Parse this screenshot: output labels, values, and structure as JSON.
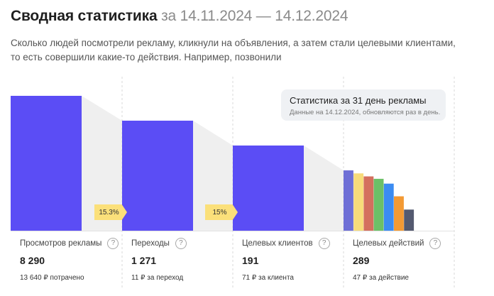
{
  "header": {
    "title": "Сводная статистика",
    "period": "за 14.11.2024 — 14.12.2024",
    "subtitle": "Сколько людей посмотрели рекламу, кликнули на объявления, а затем стали целевыми клиентами, то есть совершили какие-то действия. Например, позвонили"
  },
  "tooltip": {
    "title": "Статистика за 31 день рекламы",
    "note": "Данные на 14.12.2024, обновляются раз в день."
  },
  "chart_data": {
    "type": "bar",
    "categories": [
      "Просмотров рекламы",
      "Переходы",
      "Целевых клиентов",
      "Целевых действий"
    ],
    "values": [
      8290,
      1271,
      191,
      289
    ],
    "conversions": [
      "15.3%",
      "15%"
    ],
    "actions_breakdown_relative": [
      1.0,
      0.95,
      0.9,
      0.86,
      0.78,
      0.57,
      0.35
    ],
    "actions_colors": [
      "#6e6fd6",
      "#f7db7a",
      "#d46f5e",
      "#6cc067",
      "#3b8cf2",
      "#f39a34",
      "#545a70"
    ],
    "bar_color": "#5b4df5",
    "funnel_color": "#efefef",
    "grid": "vertical-dashed-separators"
  },
  "stats": [
    {
      "label": "Просмотров рекламы",
      "value": "8 290",
      "note": "13 640 ₽ потрачено"
    },
    {
      "label": "Переходы",
      "value": "1 271",
      "note": "11 ₽ за переход"
    },
    {
      "label": "Целевых клиентов",
      "value": "191",
      "note": "71 ₽ за клиента"
    },
    {
      "label": "Целевых действий",
      "value": "289",
      "note": "47 ₽ за действие"
    }
  ],
  "help_glyph": "?"
}
